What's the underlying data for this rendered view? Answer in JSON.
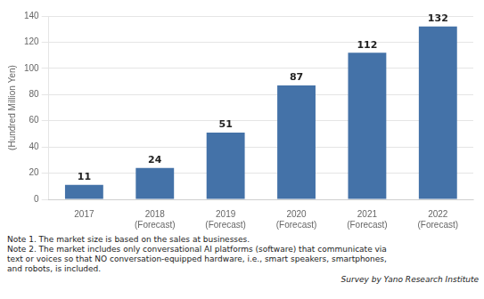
{
  "chart_data": {
    "type": "bar",
    "categories": [
      "2017",
      "2018\n(Forecast)",
      "2019\n(Forecast)",
      "2020\n(Forecast)",
      "2021\n(Forecast)",
      "2022\n(Forecast)"
    ],
    "values": [
      11,
      24,
      51,
      87,
      112,
      132
    ],
    "color": "#4472a8",
    "ylabel": "(Hundred Million Yen)",
    "ylim": [
      0,
      140
    ],
    "yticks": [
      0,
      20,
      40,
      60,
      80,
      100,
      120,
      140
    ],
    "grid": true,
    "data_labels": true,
    "annotations": [
      "Note 1. The market size is based on the sales at businesses.",
      "Note 2. The market includes only conversational AI platforms (software) that communicate via\ntext or voices so that NO conversation-equipped hardware, i.e., smart speakers, smartphones,\nand robots, is included."
    ],
    "source": "Survey by Yano Research Institute"
  }
}
